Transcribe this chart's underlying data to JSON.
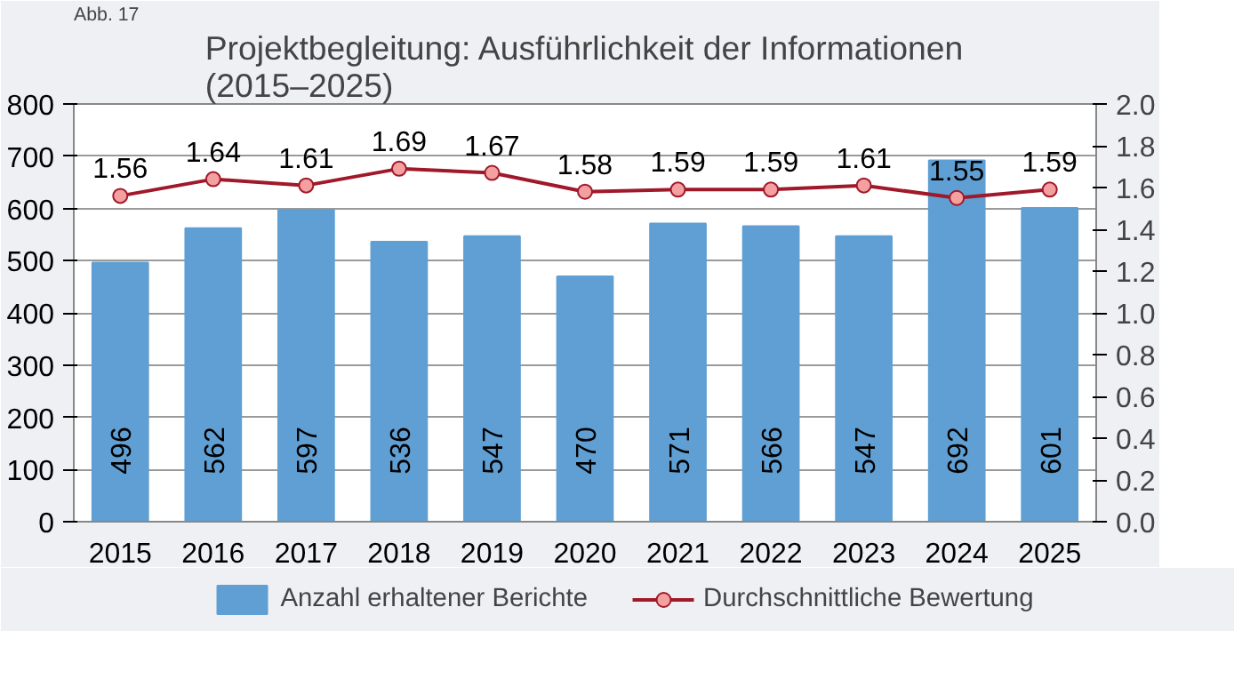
{
  "chart_data": {
    "type": "bar",
    "title": "Projektbegleitung: Ausführlichkeit der Informationen\n(2015–2025)",
    "annotations": [
      "Abb. 17"
    ],
    "categories": [
      "2015",
      "2016",
      "2017",
      "2018",
      "2019",
      "2020",
      "2021",
      "2022",
      "2023",
      "2024",
      "2025"
    ],
    "series": [
      {
        "name": "Anzahl erhaltener Berichte",
        "color": "#5f9fd3",
        "values": [
          496,
          562,
          597,
          536,
          547,
          470,
          571,
          566,
          547,
          692,
          601
        ]
      },
      {
        "name": "Durchschnittliche Bewertung",
        "type": "line",
        "axis": "y2",
        "color": "#a0192a",
        "marker": "circle",
        "values": [
          1.56,
          1.64,
          1.61,
          1.69,
          1.67,
          1.58,
          1.59,
          1.59,
          1.61,
          1.55,
          1.59
        ]
      }
    ],
    "data_labels": true,
    "ylim": [
      0,
      800
    ],
    "yticks": [
      0,
      100,
      200,
      300,
      400,
      500,
      600,
      700,
      800
    ],
    "y2lim": [
      0,
      2.0
    ],
    "y2ticks": [
      {
        "value": 0,
        "label": "0.0"
      },
      {
        "value": 0.2,
        "label": "0.2"
      },
      {
        "value": 0.4,
        "label": "0.4"
      },
      {
        "value": 0.6,
        "label": "0.6"
      },
      {
        "value": 0.8,
        "label": "0.8"
      },
      {
        "value": 1.0,
        "label": "1.0"
      },
      {
        "value": 1.2,
        "label": "1.2"
      },
      {
        "value": 1.4,
        "label": "1.4"
      },
      {
        "value": 1.6,
        "label": "1.6"
      },
      {
        "value": 1.8,
        "label": "1.8"
      },
      {
        "value": 2.0,
        "label": "2.0"
      }
    ],
    "grid": "y",
    "legend": "bottom"
  }
}
